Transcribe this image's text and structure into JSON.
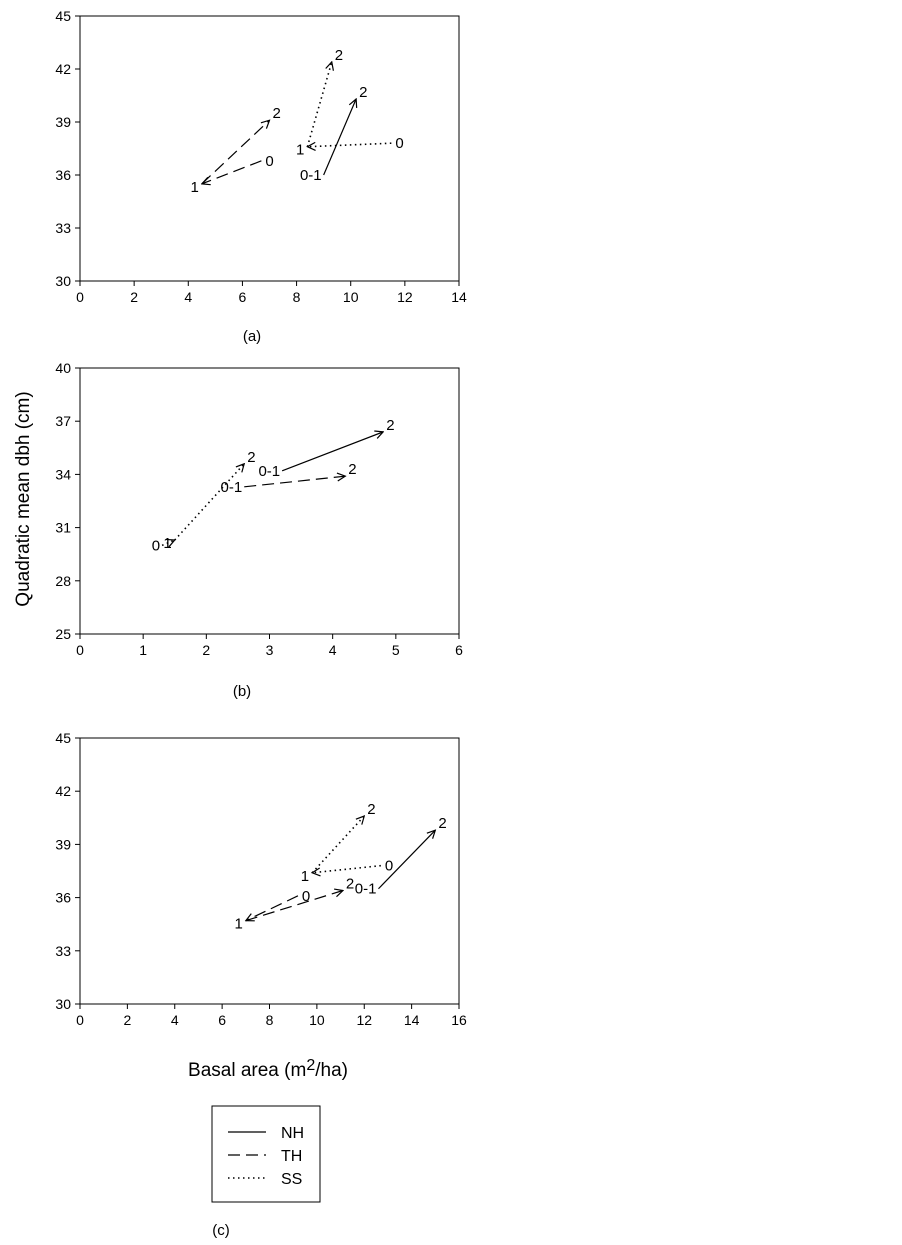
{
  "figure": {
    "ylabel": "Quadratic mean dbh (cm)",
    "xlabel_main": "Basal area (m",
    "xlabel_sup": "2",
    "xlabel_tail": "/ha)"
  },
  "legend": {
    "entries": [
      {
        "name": "NH",
        "style": "solid"
      },
      {
        "name": "TH",
        "style": "dashed"
      },
      {
        "name": "SS",
        "style": "dotted"
      }
    ]
  },
  "chart_data": [
    {
      "type": "line",
      "panel_label": "(a)",
      "xlim": [
        0,
        14
      ],
      "ylim": [
        30,
        45
      ],
      "xticks": [
        0,
        2,
        4,
        6,
        8,
        10,
        12,
        14
      ],
      "yticks": [
        30,
        33,
        36,
        39,
        42,
        45
      ],
      "grid": false,
      "series": [
        {
          "name": "NH",
          "style": "solid",
          "points": [
            {
              "x": 9.0,
              "y": 36.0,
              "label": "0-1"
            },
            {
              "x": 10.2,
              "y": 40.3,
              "label": "2"
            }
          ]
        },
        {
          "name": "TH",
          "style": "dashed",
          "points": [
            {
              "x": 6.7,
              "y": 36.8,
              "label": "0"
            },
            {
              "x": 4.5,
              "y": 35.5,
              "label": "1"
            },
            {
              "x": 7.0,
              "y": 39.1,
              "label": "2"
            }
          ]
        },
        {
          "name": "SS",
          "style": "dotted",
          "points": [
            {
              "x": 11.5,
              "y": 37.8,
              "label": "0"
            },
            {
              "x": 8.4,
              "y": 37.6,
              "label": "1"
            },
            {
              "x": 9.3,
              "y": 42.4,
              "label": "2"
            }
          ]
        }
      ]
    },
    {
      "type": "line",
      "panel_label": "(b)",
      "xlim": [
        0,
        6
      ],
      "ylim": [
        25,
        40
      ],
      "xticks": [
        0,
        1,
        2,
        3,
        4,
        5,
        6
      ],
      "yticks": [
        25,
        28,
        31,
        34,
        37,
        40
      ],
      "grid": false,
      "series": [
        {
          "name": "NH",
          "style": "solid",
          "points": [
            {
              "x": 3.2,
              "y": 34.2,
              "label": "0-1"
            },
            {
              "x": 4.8,
              "y": 36.4,
              "label": "2"
            }
          ]
        },
        {
          "name": "TH",
          "style": "dashed",
          "points": [
            {
              "x": 2.6,
              "y": 33.3,
              "label": "0-1"
            },
            {
              "x": 4.2,
              "y": 33.9,
              "label": "2"
            }
          ]
        },
        {
          "name": "SS",
          "style": "dotted",
          "points": [
            {
              "x": 1.3,
              "y": 30.0,
              "label": "0"
            },
            {
              "x": 1.5,
              "y": 30.3,
              "label": "1"
            },
            {
              "x": 2.6,
              "y": 34.6,
              "label": "2"
            }
          ]
        }
      ]
    },
    {
      "type": "line",
      "panel_label": "(c)",
      "xlim": [
        0,
        16
      ],
      "ylim": [
        30,
        45
      ],
      "xticks": [
        0,
        2,
        4,
        6,
        8,
        10,
        12,
        14,
        16
      ],
      "yticks": [
        30,
        33,
        36,
        39,
        42,
        45
      ],
      "grid": false,
      "series": [
        {
          "name": "NH",
          "style": "solid",
          "points": [
            {
              "x": 12.6,
              "y": 36.5,
              "label": "0-1"
            },
            {
              "x": 15.0,
              "y": 39.8,
              "label": "2"
            }
          ]
        },
        {
          "name": "TH",
          "style": "dashed",
          "points": [
            {
              "x": 9.2,
              "y": 36.1,
              "label": "0"
            },
            {
              "x": 7.0,
              "y": 34.7,
              "label": "1"
            },
            {
              "x": 11.1,
              "y": 36.4,
              "label": "2"
            }
          ]
        },
        {
          "name": "SS",
          "style": "dotted",
          "points": [
            {
              "x": 12.7,
              "y": 37.8,
              "label": "0"
            },
            {
              "x": 9.8,
              "y": 37.4,
              "label": "1"
            },
            {
              "x": 12.0,
              "y": 40.6,
              "label": "2"
            }
          ]
        }
      ]
    }
  ]
}
